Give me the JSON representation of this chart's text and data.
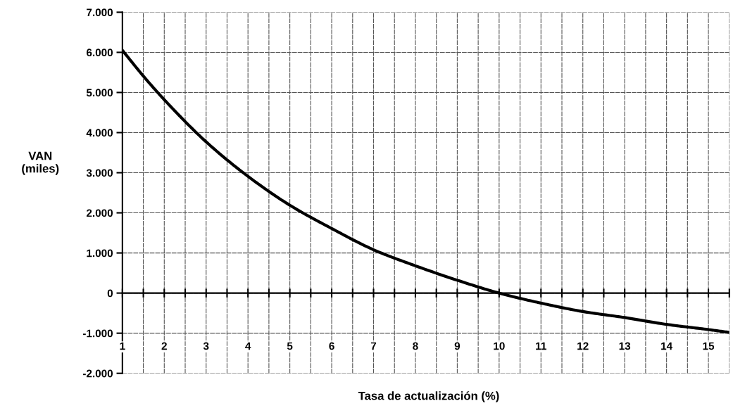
{
  "chart_data": {
    "type": "line",
    "xlabel": "Tasa de actualización (%)",
    "ylabel": "VAN\n(miles)",
    "x": [
      1,
      1.5,
      2,
      3,
      4,
      5,
      6,
      7,
      8,
      9,
      10,
      11,
      12,
      13,
      14,
      15,
      15.5
    ],
    "series": [
      {
        "color": "#000000",
        "values": [
          6050,
          5410,
          4820,
          3770,
          2910,
          2190,
          1610,
          1080,
          680,
          320,
          0,
          -250,
          -460,
          -610,
          -780,
          -910,
          -980
        ]
      }
    ],
    "xlim": [
      1,
      15.5
    ],
    "xticks": [
      1,
      {
        "value": 1.5,
        "label": null
      },
      2,
      {
        "value": 2.5,
        "label": null
      },
      3,
      {
        "value": 3.5,
        "label": null
      },
      4,
      {
        "value": 4.5,
        "label": null
      },
      5,
      {
        "value": 5.5,
        "label": null
      },
      6,
      {
        "value": 6.5,
        "label": null
      },
      7,
      {
        "value": 7.5,
        "label": null
      },
      8,
      {
        "value": 8.5,
        "label": null
      },
      9,
      {
        "value": 9.5,
        "label": null
      },
      10,
      {
        "value": 10.5,
        "label": null
      },
      11,
      {
        "value": 11.5,
        "label": null
      },
      12,
      {
        "value": 12.5,
        "label": null
      },
      13,
      {
        "value": 13.5,
        "label": null
      },
      14,
      {
        "value": 14.5,
        "label": null
      },
      15,
      {
        "value": 15.5,
        "label": null
      }
    ],
    "ylim": [
      -2000,
      7000
    ],
    "yticks": [
      {
        "value": -2000,
        "label": "-2.000"
      },
      {
        "value": -1000,
        "label": "-1.000"
      },
      0,
      {
        "value": 1000,
        "label": "1.000"
      },
      {
        "value": 2000,
        "label": "2.000"
      },
      {
        "value": 3000,
        "label": "3.000"
      },
      {
        "value": 4000,
        "label": "4.000"
      },
      {
        "value": 5000,
        "label": "5.000"
      },
      {
        "value": 6000,
        "label": "6.000"
      },
      {
        "value": 7000,
        "label": "7.000"
      }
    ],
    "grid": true,
    "marker": "none",
    "line_style": "solid"
  }
}
